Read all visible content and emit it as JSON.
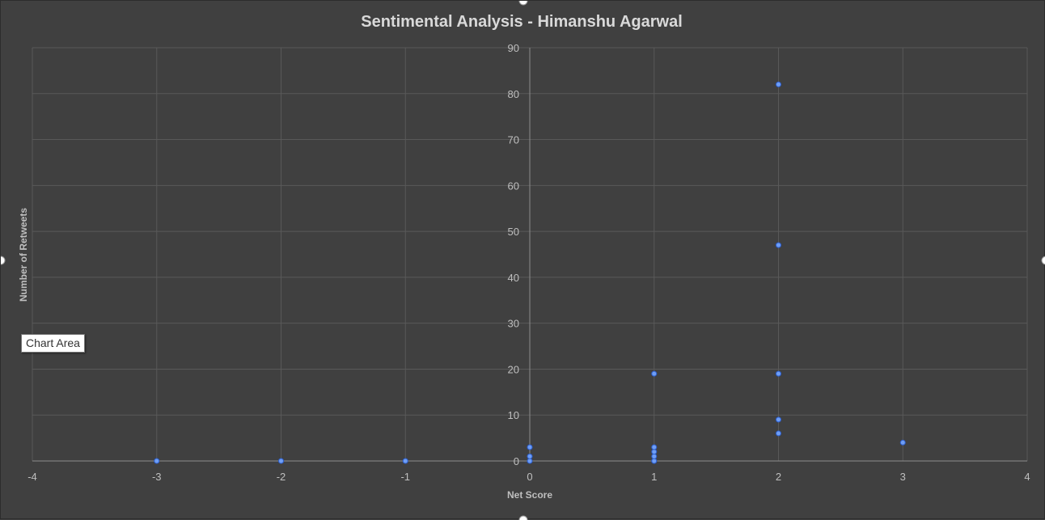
{
  "chart_data": {
    "type": "scatter",
    "title": "Sentimental Analysis - Himanshu Agarwal",
    "xlabel": "Net Score",
    "ylabel": "Number of Retweets",
    "xlim": [
      -4,
      4
    ],
    "ylim": [
      0,
      90
    ],
    "x_ticks": [
      -4,
      -3,
      -2,
      -1,
      0,
      1,
      2,
      3,
      4
    ],
    "y_ticks": [
      0,
      10,
      20,
      30,
      40,
      50,
      60,
      70,
      80,
      90
    ],
    "grid": true,
    "series": [
      {
        "color": "#6f9ef5",
        "points": [
          {
            "x": -3,
            "y": 0
          },
          {
            "x": -2,
            "y": 0
          },
          {
            "x": -1,
            "y": 0
          },
          {
            "x": 0,
            "y": 0
          },
          {
            "x": 0,
            "y": 1
          },
          {
            "x": 0,
            "y": 3
          },
          {
            "x": 1,
            "y": 0
          },
          {
            "x": 1,
            "y": 0
          },
          {
            "x": 1,
            "y": 1
          },
          {
            "x": 1,
            "y": 2
          },
          {
            "x": 1,
            "y": 3
          },
          {
            "x": 1,
            "y": 19
          },
          {
            "x": 2,
            "y": 6
          },
          {
            "x": 2,
            "y": 9
          },
          {
            "x": 2,
            "y": 19
          },
          {
            "x": 2,
            "y": 47
          },
          {
            "x": 2,
            "y": 82
          },
          {
            "x": 3,
            "y": 4
          }
        ]
      }
    ]
  },
  "tooltip": {
    "text": "Chart Area"
  },
  "colors": {
    "background": "#404040",
    "gridline": "#595959",
    "marker": "#6f9ef5"
  }
}
